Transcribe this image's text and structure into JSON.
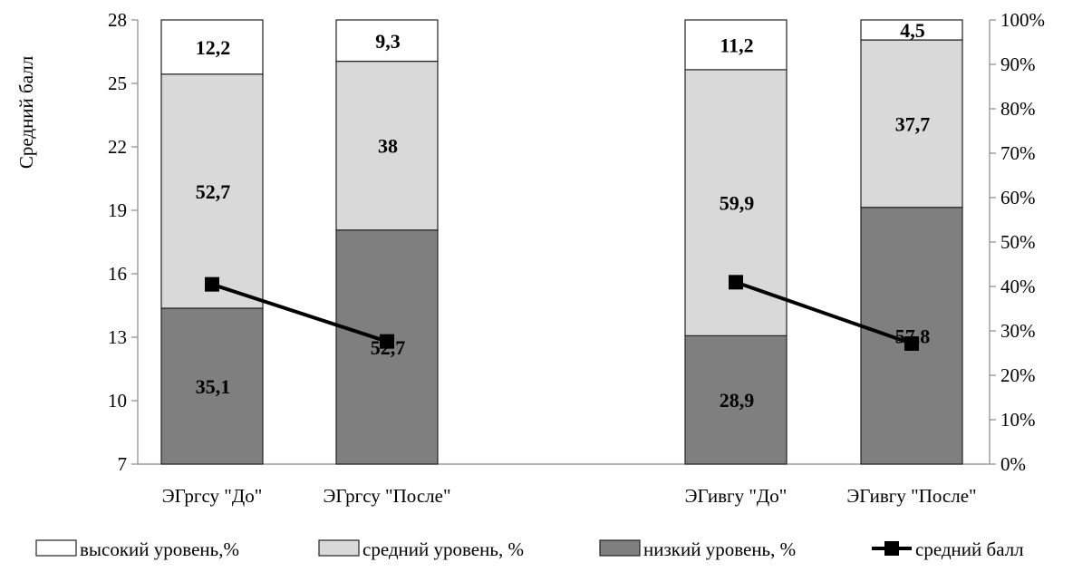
{
  "chart_data": {
    "type": "bar",
    "stacked": true,
    "percent_stacked": true,
    "categories": [
      "ЭГргсу \"До\"",
      "ЭГргсу \"После\"",
      "ЭГивгу \"До\"",
      "ЭГивгу \"После\""
    ],
    "series": [
      {
        "name": "низкий уровень, %",
        "color": "#7f7f7f",
        "values": [
          35.1,
          52.7,
          28.9,
          57.8
        ]
      },
      {
        "name": "средний уровень, %",
        "color": "#d9d9d9",
        "values": [
          52.7,
          38,
          59.9,
          37.7
        ]
      },
      {
        "name": "высокий уровень,%",
        "color": "#ffffff",
        "values": [
          12.2,
          9.3,
          11.2,
          4.5
        ]
      }
    ],
    "segment_labels": [
      [
        "35,1",
        "52,7",
        "28,9",
        "57,8"
      ],
      [
        "52,7",
        "38",
        "59,9",
        "37,7"
      ],
      [
        "12,2",
        "9,3",
        "11,2",
        "4,5"
      ]
    ],
    "line_series": {
      "name": "средний балл",
      "color": "#000000",
      "values": [
        15.5,
        12.8,
        15.6,
        12.7
      ],
      "connect_pairs": [
        [
          0,
          1
        ],
        [
          2,
          3
        ]
      ]
    },
    "ylabel": "Средний балл",
    "y_left": {
      "min": 7,
      "max": 28,
      "ticks": [
        7,
        10,
        13,
        16,
        19,
        22,
        25,
        28
      ]
    },
    "y_right": {
      "min": 0,
      "max": 100,
      "tick_labels": [
        "0%",
        "10%",
        "20%",
        "30%",
        "40%",
        "50%",
        "60%",
        "70%",
        "80%",
        "90%",
        "100%"
      ]
    },
    "legend": {
      "position": "bottom",
      "items": [
        {
          "label": "высокий уровень,%",
          "kind": "box",
          "color": "#ffffff"
        },
        {
          "label": "средний уровень, %",
          "kind": "box",
          "color": "#d9d9d9"
        },
        {
          "label": "низкий уровень, %",
          "kind": "box",
          "color": "#7f7f7f"
        },
        {
          "label": "средний балл",
          "kind": "line-marker",
          "color": "#000000"
        }
      ]
    },
    "grid": false
  }
}
